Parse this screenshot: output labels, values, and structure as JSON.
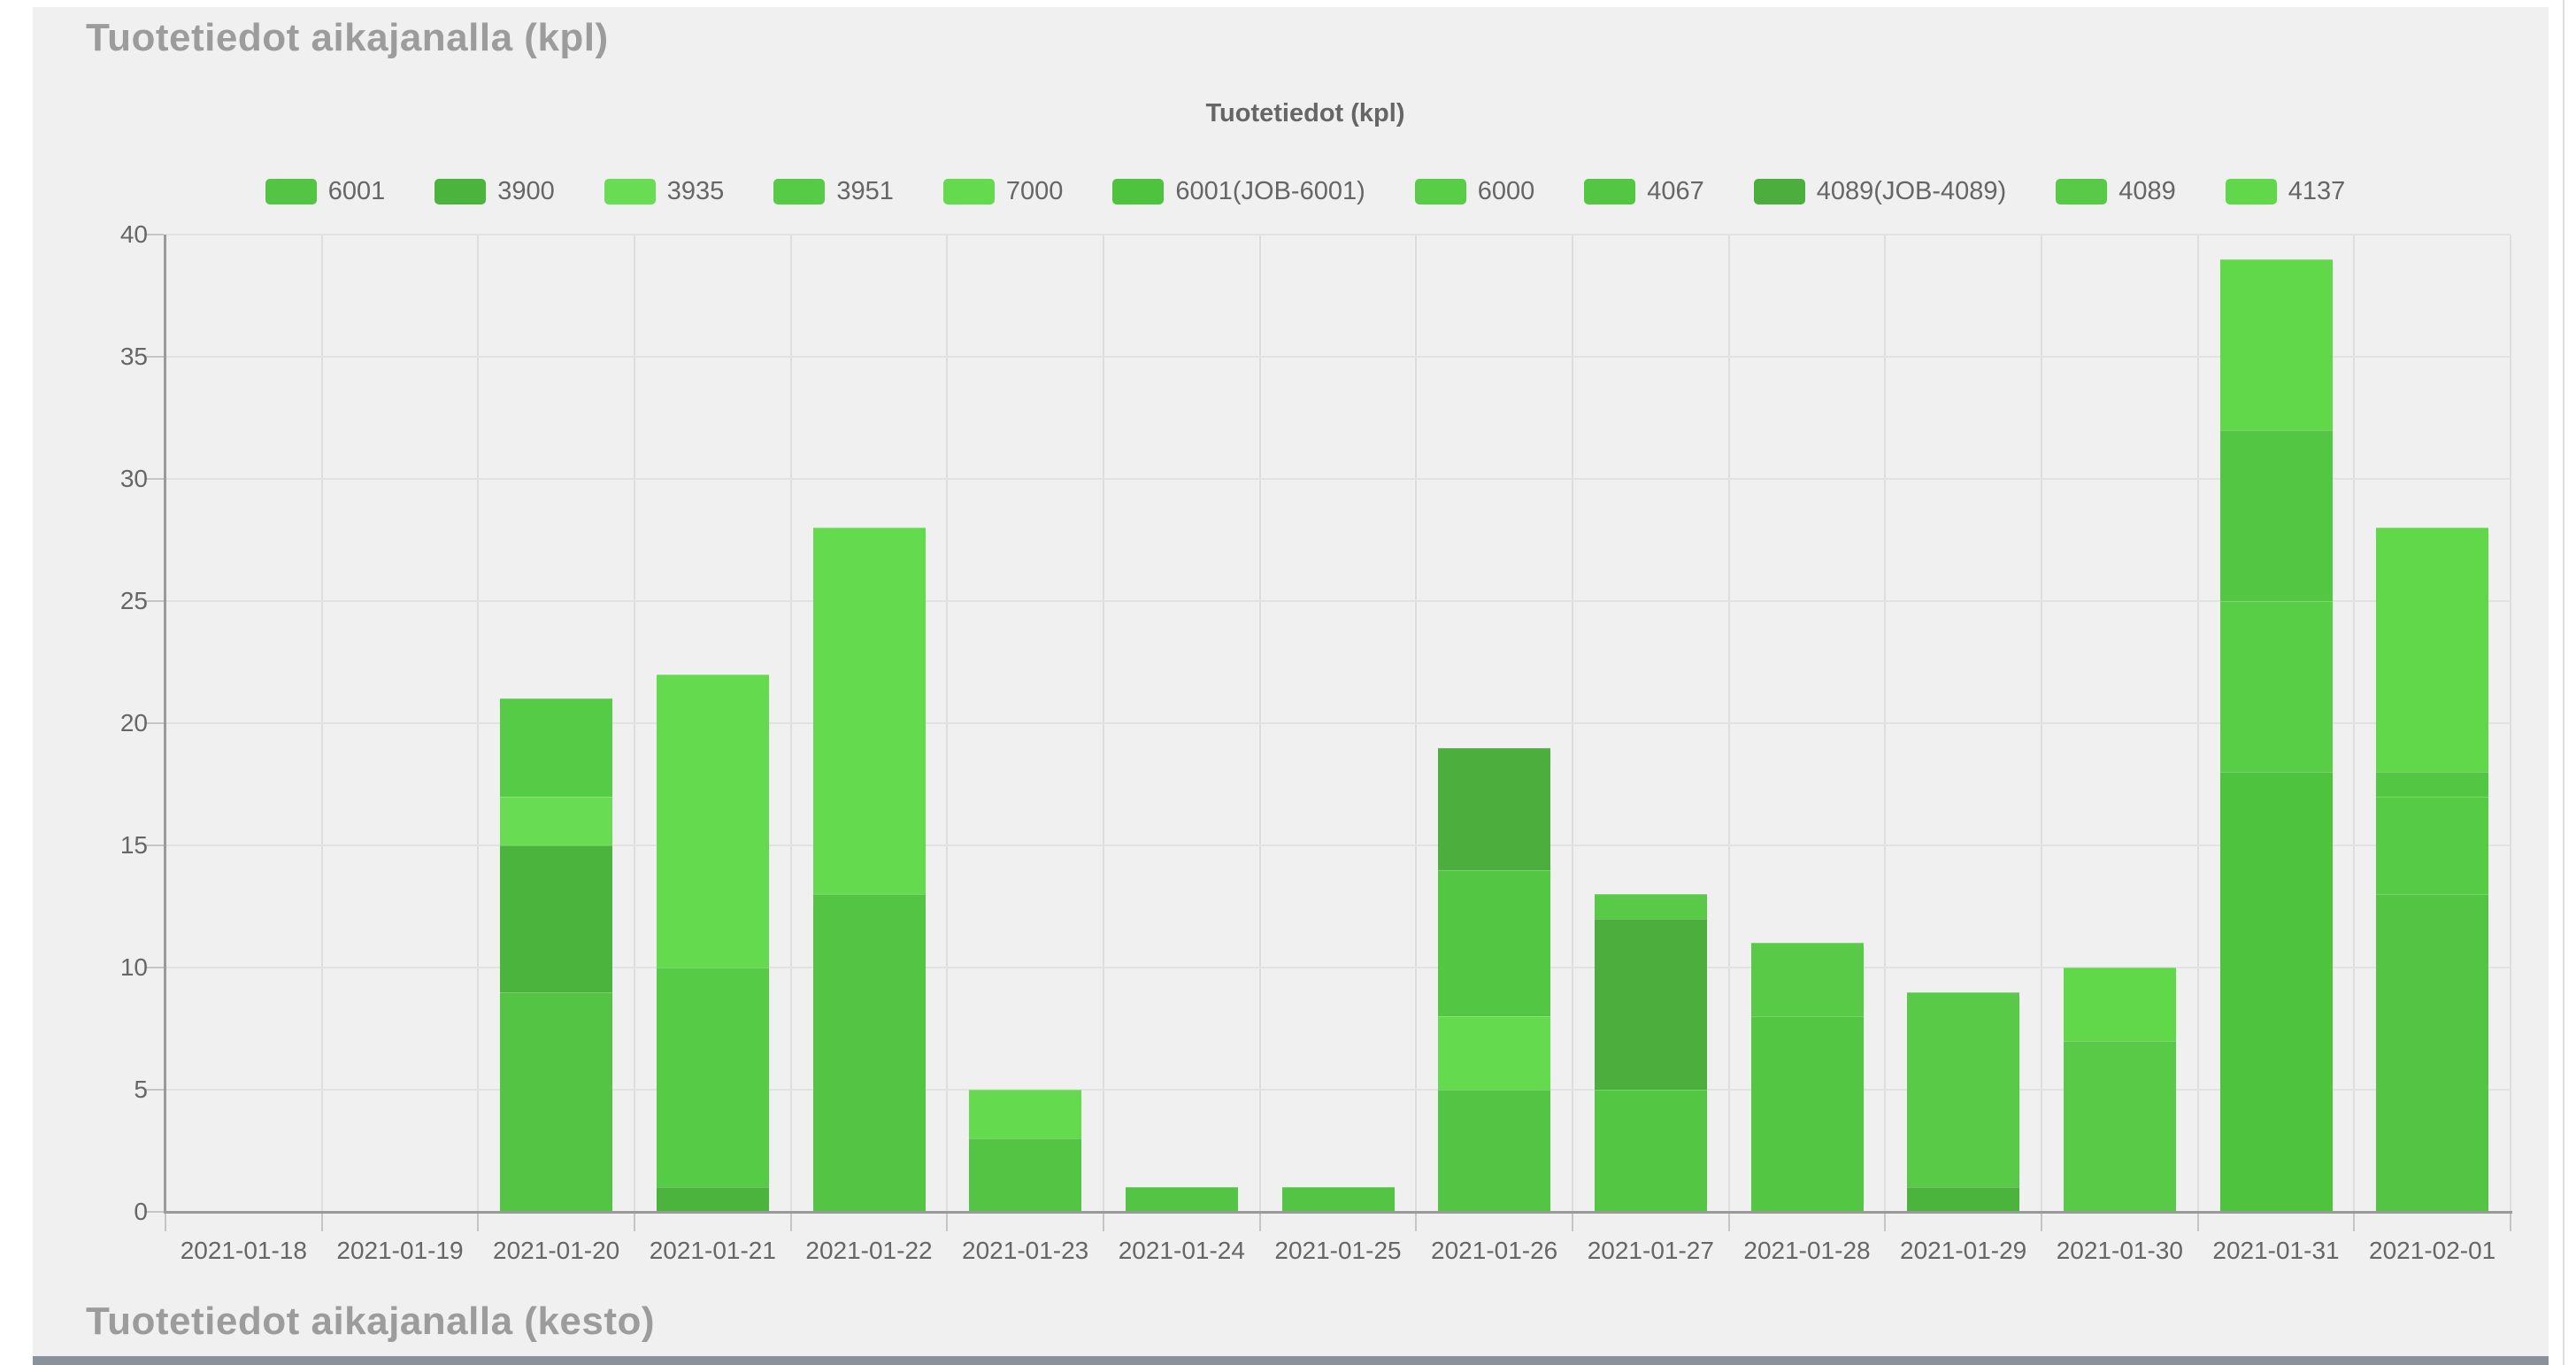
{
  "section_titles": {
    "kpl": "Tuotetiedot aikajanalla (kpl)",
    "kesto": "Tuotetiedot aikajanalla (kesto)"
  },
  "chart_data": {
    "type": "bar",
    "stacked": true,
    "title": "Tuotetiedot (kpl)",
    "legend_position": "top",
    "grid": true,
    "ylim": [
      0,
      40
    ],
    "yticks": [
      0,
      5,
      10,
      15,
      20,
      25,
      30,
      35,
      40
    ],
    "categories": [
      "2021-01-18",
      "2021-01-19",
      "2021-01-20",
      "2021-01-21",
      "2021-01-22",
      "2021-01-23",
      "2021-01-24",
      "2021-01-25",
      "2021-01-26",
      "2021-01-27",
      "2021-01-28",
      "2021-01-29",
      "2021-01-30",
      "2021-01-31",
      "2021-02-01"
    ],
    "series": [
      {
        "name": "6001",
        "color": "#53C444",
        "values": [
          0,
          0,
          9,
          0,
          13,
          3,
          1,
          1,
          5,
          0,
          0,
          0,
          0,
          0,
          13
        ]
      },
      {
        "name": "3900",
        "color": "#4BB43C",
        "values": [
          0,
          0,
          6,
          1,
          0,
          0,
          0,
          0,
          0,
          0,
          0,
          1,
          0,
          0,
          0
        ]
      },
      {
        "name": "3935",
        "color": "#68DC52",
        "values": [
          0,
          0,
          2,
          0,
          0,
          0,
          0,
          0,
          0,
          0,
          0,
          0,
          0,
          0,
          0
        ]
      },
      {
        "name": "3951",
        "color": "#56CB46",
        "values": [
          0,
          0,
          4,
          9,
          0,
          0,
          0,
          0,
          0,
          0,
          0,
          0,
          0,
          0,
          4
        ]
      },
      {
        "name": "7000",
        "color": "#64DB4E",
        "values": [
          0,
          0,
          0,
          12,
          15,
          2,
          0,
          0,
          3,
          0,
          0,
          0,
          0,
          0,
          0
        ]
      },
      {
        "name": "6001(JOB-6001)",
        "color": "#4EC33E",
        "values": [
          0,
          0,
          0,
          0,
          0,
          0,
          0,
          0,
          0,
          0,
          0,
          0,
          0,
          18,
          0
        ]
      },
      {
        "name": "6000",
        "color": "#57CE45",
        "values": [
          0,
          0,
          0,
          0,
          0,
          0,
          0,
          0,
          0,
          0,
          0,
          0,
          0,
          7,
          0
        ]
      },
      {
        "name": "4067",
        "color": "#53C643",
        "values": [
          0,
          0,
          0,
          0,
          0,
          0,
          0,
          0,
          6,
          5,
          8,
          0,
          0,
          7,
          1
        ]
      },
      {
        "name": "4089(JOB-4089)",
        "color": "#4CAE3C",
        "values": [
          0,
          0,
          0,
          0,
          0,
          0,
          0,
          0,
          5,
          7,
          0,
          0,
          0,
          0,
          0
        ]
      },
      {
        "name": "4089",
        "color": "#58CA47",
        "values": [
          0,
          0,
          0,
          0,
          0,
          0,
          0,
          0,
          0,
          1,
          3,
          8,
          7,
          0,
          0
        ]
      },
      {
        "name": "4137",
        "color": "#61D84A",
        "values": [
          0,
          0,
          0,
          0,
          0,
          0,
          0,
          0,
          0,
          0,
          0,
          0,
          3,
          7,
          10
        ]
      }
    ],
    "totals": [
      0,
      0,
      21,
      22,
      28,
      5,
      1,
      1,
      19,
      13,
      11,
      9,
      10,
      39,
      28
    ]
  },
  "colors": {
    "panel_bg": "#f0f0f1",
    "section_title": "#9c9c9c",
    "axis_line": "#9a9a9a",
    "gridline": "#e2e2e3",
    "label_text": "#666666",
    "bottom_strip": "#89919a"
  }
}
